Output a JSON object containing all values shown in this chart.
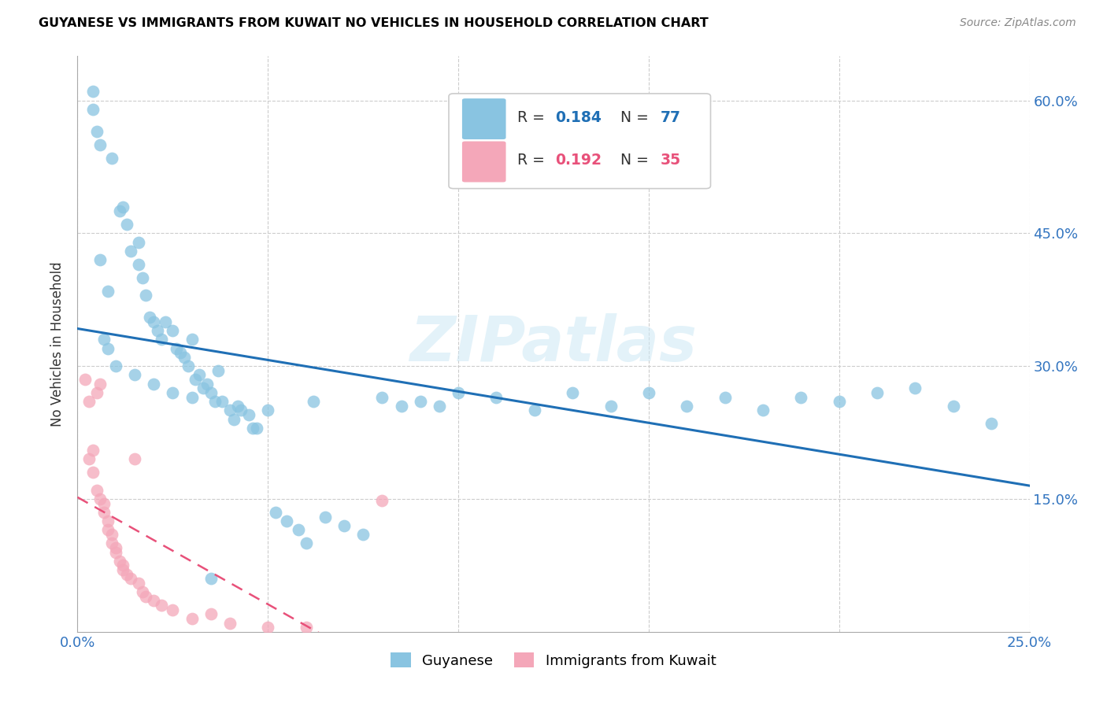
{
  "title": "GUYANESE VS IMMIGRANTS FROM KUWAIT NO VEHICLES IN HOUSEHOLD CORRELATION CHART",
  "source": "Source: ZipAtlas.com",
  "ylabel": "No Vehicles in Household",
  "color_blue": "#89c4e1",
  "color_pink": "#f4a7b9",
  "color_blue_line": "#1f6fb5",
  "color_pink_line": "#e8517a",
  "watermark": "ZIPatlas",
  "xlim": [
    0,
    0.25
  ],
  "ylim": [
    0,
    0.65
  ],
  "guyanese_x": [
    0.004,
    0.006,
    0.009,
    0.011,
    0.012,
    0.013,
    0.014,
    0.016,
    0.016,
    0.017,
    0.018,
    0.019,
    0.02,
    0.021,
    0.022,
    0.023,
    0.025,
    0.026,
    0.027,
    0.028,
    0.029,
    0.03,
    0.031,
    0.032,
    0.033,
    0.034,
    0.035,
    0.036,
    0.037,
    0.038,
    0.04,
    0.041,
    0.042,
    0.043,
    0.045,
    0.046,
    0.047,
    0.05,
    0.052,
    0.055,
    0.058,
    0.06,
    0.062,
    0.065,
    0.07,
    0.075,
    0.08,
    0.085,
    0.09,
    0.095,
    0.1,
    0.11,
    0.12,
    0.13,
    0.14,
    0.15,
    0.16,
    0.17,
    0.18,
    0.19,
    0.2,
    0.21,
    0.22,
    0.23,
    0.24,
    0.007,
    0.008,
    0.01,
    0.015,
    0.02,
    0.025,
    0.03,
    0.035,
    0.004,
    0.005,
    0.006,
    0.008
  ],
  "guyanese_y": [
    0.61,
    0.55,
    0.535,
    0.475,
    0.48,
    0.46,
    0.43,
    0.44,
    0.415,
    0.4,
    0.38,
    0.355,
    0.35,
    0.34,
    0.33,
    0.35,
    0.34,
    0.32,
    0.315,
    0.31,
    0.3,
    0.33,
    0.285,
    0.29,
    0.275,
    0.28,
    0.27,
    0.26,
    0.295,
    0.26,
    0.25,
    0.24,
    0.255,
    0.25,
    0.245,
    0.23,
    0.23,
    0.25,
    0.135,
    0.125,
    0.115,
    0.1,
    0.26,
    0.13,
    0.12,
    0.11,
    0.265,
    0.255,
    0.26,
    0.255,
    0.27,
    0.265,
    0.25,
    0.27,
    0.255,
    0.27,
    0.255,
    0.265,
    0.25,
    0.265,
    0.26,
    0.27,
    0.275,
    0.255,
    0.235,
    0.33,
    0.32,
    0.3,
    0.29,
    0.28,
    0.27,
    0.265,
    0.06,
    0.59,
    0.565,
    0.42,
    0.385
  ],
  "kuwait_x": [
    0.002,
    0.003,
    0.003,
    0.004,
    0.004,
    0.005,
    0.005,
    0.006,
    0.006,
    0.007,
    0.007,
    0.008,
    0.008,
    0.009,
    0.009,
    0.01,
    0.01,
    0.011,
    0.012,
    0.012,
    0.013,
    0.014,
    0.015,
    0.016,
    0.017,
    0.018,
    0.02,
    0.022,
    0.025,
    0.03,
    0.035,
    0.04,
    0.05,
    0.06,
    0.08
  ],
  "kuwait_y": [
    0.285,
    0.26,
    0.195,
    0.205,
    0.18,
    0.27,
    0.16,
    0.28,
    0.15,
    0.145,
    0.135,
    0.125,
    0.115,
    0.11,
    0.1,
    0.095,
    0.09,
    0.08,
    0.075,
    0.07,
    0.065,
    0.06,
    0.195,
    0.055,
    0.045,
    0.04,
    0.035,
    0.03,
    0.025,
    0.015,
    0.02,
    0.01,
    0.005,
    0.005,
    0.148
  ]
}
